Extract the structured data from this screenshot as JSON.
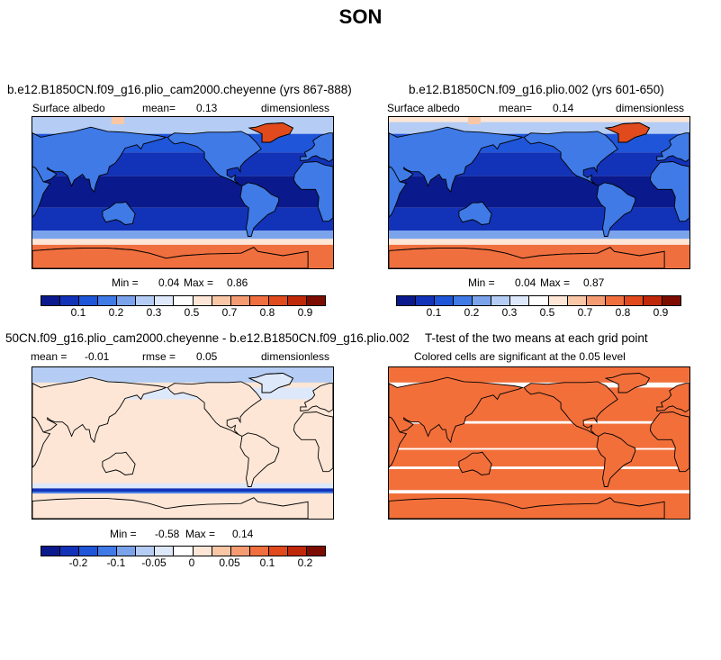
{
  "title": "SON",
  "colors": {
    "albedo_scale": [
      "#0a1a8c",
      "#1233b8",
      "#1f55d8",
      "#3f7ae6",
      "#7aa3ec",
      "#b5cdf4",
      "#dde8fa",
      "#ffffff",
      "#fde6d6",
      "#f9c7a6",
      "#f59b72",
      "#f06f3e",
      "#e04a1c",
      "#c0280a",
      "#7d0c00"
    ],
    "diff_scale": [
      "#0a1a8c",
      "#1233b8",
      "#1f55d8",
      "#3f7ae6",
      "#7aa3ec",
      "#b5cdf4",
      "#dde8fa",
      "#ffffff",
      "#fde6d6",
      "#f9c7a6",
      "#f59b72",
      "#f06f3e",
      "#e04a1c",
      "#c0280a",
      "#7d0c00"
    ],
    "ttest_fill": "#f26f3a"
  },
  "panels": {
    "p1": {
      "title": "b.e12.B1850CN.f09_g16.plio_cam2000.cheyenne (yrs 867-888)",
      "var": "Surface albedo",
      "mean_label": "mean=",
      "mean": "0.13",
      "units": "dimensionless",
      "min_label": "Min =",
      "min": "0.04",
      "max_label": "Max =",
      "max": "0.86",
      "ticks": [
        "0.1",
        "0.2",
        "0.3",
        "0.5",
        "0.7",
        "0.8",
        "0.9"
      ]
    },
    "p2": {
      "title": "b.e12.B1850CN.f09_g16.plio.002 (yrs 601-650)",
      "var": "Surface albedo",
      "mean_label": "mean=",
      "mean": "0.14",
      "units": "dimensionless",
      "min_label": "Min =",
      "min": "0.04",
      "max_label": "Max =",
      "max": "0.87",
      "ticks": [
        "0.1",
        "0.2",
        "0.3",
        "0.5",
        "0.7",
        "0.8",
        "0.9"
      ]
    },
    "p3": {
      "title": "50CN.f09_g16.plio_cam2000.cheyenne - b.e12.B1850CN.f09_g16.plio.002",
      "mean_label": "mean =",
      "mean": "-0.01",
      "rmse_label": "rmse =",
      "rmse": "0.05",
      "units": "dimensionless",
      "min_label": "Min =",
      "min": "-0.58",
      "max_label": "Max =",
      "max": "0.14",
      "ticks": [
        "-0.2",
        "-0.1",
        "-0.05",
        "0",
        "0.05",
        "0.1",
        "0.2"
      ]
    },
    "p4": {
      "title": "T-test of the two means at each grid point",
      "subtitle": "Colored cells are significant at the 0.05 level"
    }
  }
}
